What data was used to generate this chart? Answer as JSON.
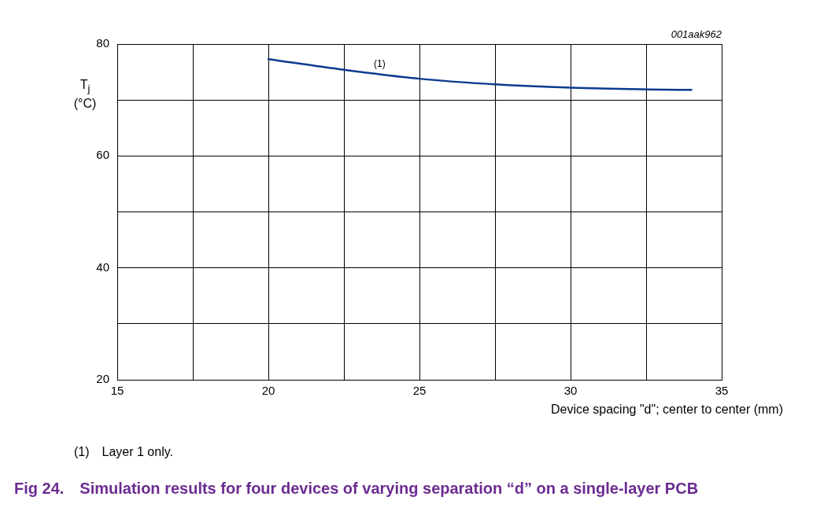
{
  "chart_data": {
    "type": "line",
    "title": "Fig 24. Simulation results for four devices of varying separation “d” on a single-layer PCB",
    "xlabel": "Device spacing \"d\"; center to center (mm)",
    "ylabel": "T$_{j}$\n(°C)",
    "x": [
      20,
      22.5,
      25,
      27.5,
      30,
      32.5,
      34
    ],
    "series": [
      {
        "color": "#0b3a8f",
        "values": [
          77.3,
          75.4,
          73.8,
          72.8,
          72.2,
          71.9,
          71.8
        ]
      }
    ],
    "xlim": [
      15,
      35
    ],
    "ylim": [
      20,
      80
    ],
    "xticks": [
      15,
      {
        "value": 17.5,
        "label": null
      },
      20,
      {
        "value": 22.5,
        "label": null
      },
      25,
      {
        "value": 27.5,
        "label": null
      },
      30,
      {
        "value": 32.5,
        "label": null
      },
      35
    ],
    "yticks": [
      20,
      {
        "value": 30,
        "label": null
      },
      40,
      {
        "value": 50,
        "label": null
      },
      60,
      {
        "value": 70,
        "label": null
      },
      80
    ],
    "grid": true,
    "legend": false,
    "marker": "none",
    "line_style": "solid",
    "annotations": [
      "(1)",
      "001aak962",
      "(1) Layer 1 only."
    ]
  }
}
